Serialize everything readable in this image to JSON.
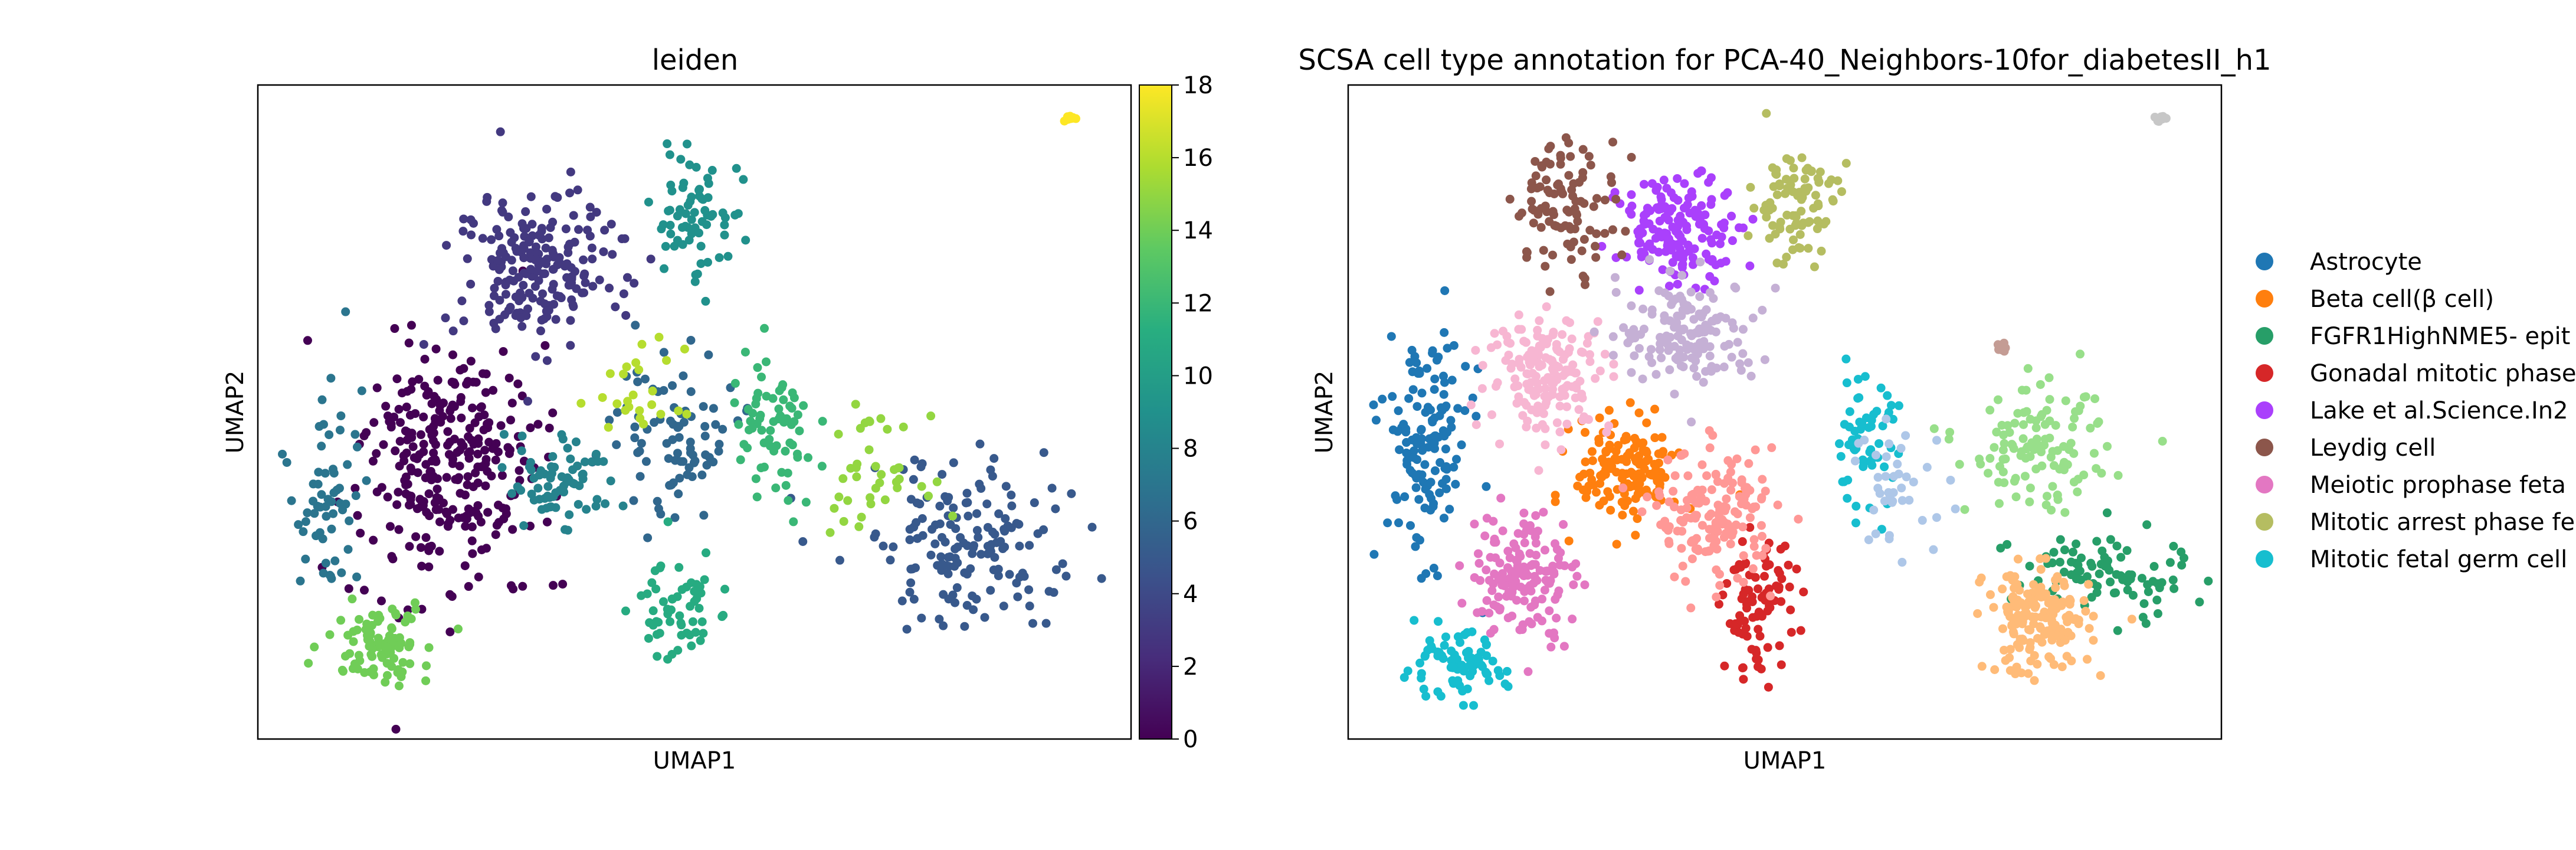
{
  "chart_data": [
    {
      "type": "scatter",
      "title": "leiden",
      "xlabel": "UMAP1",
      "ylabel": "UMAP2",
      "color_by": "leiden cluster",
      "colorbar": {
        "range": [
          0,
          18
        ],
        "ticks": [
          "0",
          "2",
          "4",
          "6",
          "8",
          "10",
          "12",
          "14",
          "16",
          "18"
        ],
        "colormap": "viridis"
      },
      "xlim": [
        0,
        10
      ],
      "ylim": [
        0,
        10
      ],
      "grid": false,
      "clusters": [
        {
          "value": 0,
          "center": [
            2.2,
            4.2
          ],
          "spread": [
            1.0,
            1.8
          ],
          "n": 300
        },
        {
          "value": 3,
          "center": [
            3.2,
            7.2
          ],
          "spread": [
            1.0,
            1.2
          ],
          "n": 200
        },
        {
          "value": 5,
          "center": [
            8.2,
            3.0
          ],
          "spread": [
            1.2,
            1.3
          ],
          "n": 160
        },
        {
          "value": 6,
          "center": [
            4.8,
            4.6
          ],
          "spread": [
            0.7,
            1.3
          ],
          "n": 90
        },
        {
          "value": 7,
          "center": [
            0.8,
            3.8
          ],
          "spread": [
            0.4,
            1.5
          ],
          "n": 60
        },
        {
          "value": 8,
          "center": [
            3.4,
            3.9
          ],
          "spread": [
            0.6,
            0.7
          ],
          "n": 70
        },
        {
          "value": 9,
          "center": [
            5.0,
            8.0
          ],
          "spread": [
            0.5,
            1.0
          ],
          "n": 70
        },
        {
          "value": 11,
          "center": [
            4.8,
            2.0
          ],
          "spread": [
            0.5,
            0.8
          ],
          "n": 60
        },
        {
          "value": 12,
          "center": [
            5.9,
            4.6
          ],
          "spread": [
            0.5,
            1.3
          ],
          "n": 70
        },
        {
          "value": 14,
          "center": [
            1.4,
            1.5
          ],
          "spread": [
            0.6,
            0.6
          ],
          "n": 90
        },
        {
          "value": 15,
          "center": [
            7.0,
            4.1
          ],
          "spread": [
            0.6,
            0.8
          ],
          "n": 40
        },
        {
          "value": 16,
          "center": [
            4.4,
            5.2
          ],
          "spread": [
            0.5,
            0.8
          ],
          "n": 25
        },
        {
          "value": 18,
          "center": [
            9.3,
            9.5
          ],
          "spread": [
            0.06,
            0.06
          ],
          "n": 12
        }
      ]
    },
    {
      "type": "scatter",
      "title": "SCSA cell type annotation for PCA-40_Neighbors-10for_diabetesII_h1",
      "xlabel": "UMAP1",
      "ylabel": "UMAP2",
      "xlim": [
        0,
        10
      ],
      "ylim": [
        0,
        10
      ],
      "grid": false,
      "legend_position": "right",
      "legend": [
        {
          "label": "Astrocyte",
          "color": "#1f77b4"
        },
        {
          "label": "Beta cell(β cell)",
          "color": "#ff7f0e"
        },
        {
          "label": "FGFR1HighNME5- epit",
          "color": "#279e68"
        },
        {
          "label": "Gonadal mitotic phase",
          "color": "#d62728"
        },
        {
          "label": "Lake et al.Science.In2",
          "color": "#aa40fc"
        },
        {
          "label": "Leydig cell",
          "color": "#8c564b"
        },
        {
          "label": "Meiotic prophase feta",
          "color": "#e377c2"
        },
        {
          "label": "Mitotic arrest phase fe",
          "color": "#b5bd61"
        },
        {
          "label": "Mitotic fetal germ cell",
          "color": "#17becf"
        }
      ],
      "clusters": [
        {
          "color": "#1f77b4",
          "center": [
            0.9,
            4.5
          ],
          "spread": [
            0.5,
            1.7
          ],
          "n": 140
        },
        {
          "color": "#ff7f0e",
          "center": [
            3.2,
            4.1
          ],
          "spread": [
            0.6,
            0.8
          ],
          "n": 150
        },
        {
          "color": "#279e68",
          "center": [
            8.6,
            2.5
          ],
          "spread": [
            1.0,
            0.7
          ],
          "n": 90
        },
        {
          "color": "#d62728",
          "center": [
            4.7,
            2.0
          ],
          "spread": [
            0.4,
            1.0
          ],
          "n": 90
        },
        {
          "color": "#aa40fc",
          "center": [
            3.8,
            7.8
          ],
          "spread": [
            0.7,
            0.8
          ],
          "n": 160
        },
        {
          "color": "#8c564b",
          "center": [
            2.5,
            8.2
          ],
          "spread": [
            0.6,
            1.0
          ],
          "n": 100
        },
        {
          "color": "#e377c2",
          "center": [
            2.0,
            2.5
          ],
          "spread": [
            0.6,
            1.0
          ],
          "n": 150
        },
        {
          "color": "#b5bd61",
          "center": [
            5.1,
            8.2
          ],
          "spread": [
            0.5,
            0.9
          ],
          "n": 90
        },
        {
          "color": "#17becf",
          "center": [
            1.2,
            1.1
          ],
          "spread": [
            0.6,
            0.5
          ],
          "n": 80
        },
        {
          "color": "#17becf",
          "center": [
            5.9,
            4.5
          ],
          "spread": [
            0.4,
            1.0
          ],
          "n": 60
        },
        {
          "color": "#f7b6d2",
          "center": [
            2.3,
            5.6
          ],
          "spread": [
            0.7,
            0.9
          ],
          "n": 170
        },
        {
          "color": "#c5b0d5",
          "center": [
            3.9,
            6.2
          ],
          "spread": [
            0.8,
            0.8
          ],
          "n": 150
        },
        {
          "color": "#ff9896",
          "center": [
            4.2,
            3.4
          ],
          "spread": [
            0.7,
            1.0
          ],
          "n": 160
        },
        {
          "color": "#98df8a",
          "center": [
            7.9,
            4.4
          ],
          "spread": [
            0.8,
            0.9
          ],
          "n": 120
        },
        {
          "color": "#ffbb78",
          "center": [
            7.9,
            1.8
          ],
          "spread": [
            0.6,
            0.8
          ],
          "n": 170
        },
        {
          "color": "#aec7e8",
          "center": [
            6.3,
            3.8
          ],
          "spread": [
            0.6,
            1.0
          ],
          "n": 40
        },
        {
          "color": "#c49c94",
          "center": [
            7.5,
            6.0
          ],
          "spread": [
            0.06,
            0.12
          ],
          "n": 8
        },
        {
          "color": "#c7c7c7",
          "center": [
            9.3,
            9.5
          ],
          "spread": [
            0.06,
            0.06
          ],
          "n": 8
        }
      ]
    }
  ]
}
